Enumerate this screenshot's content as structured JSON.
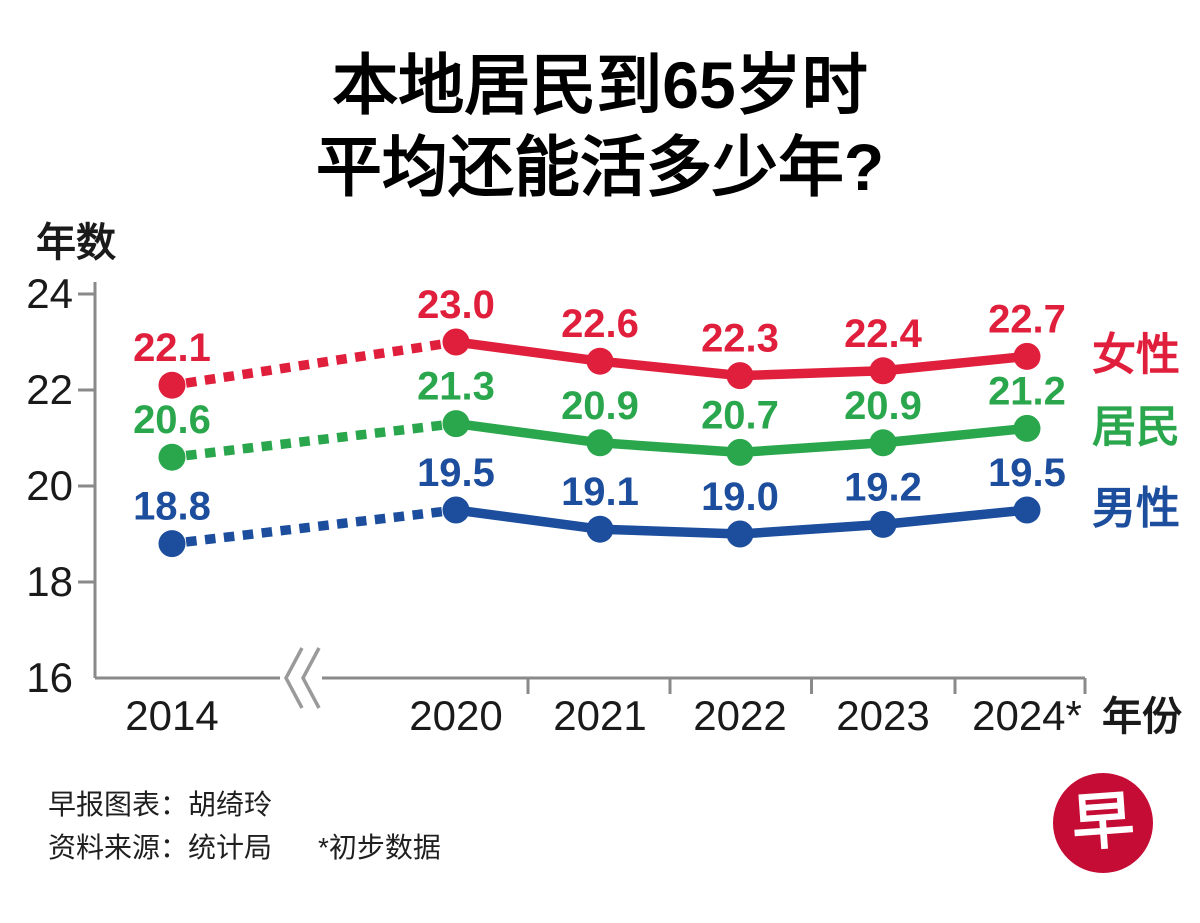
{
  "title": {
    "line1": "本地居民到65岁时",
    "line2": "平均还能活多少年?"
  },
  "chart_data": {
    "type": "line",
    "categories": [
      "2014",
      "2020",
      "2021",
      "2022",
      "2023",
      "2024*"
    ],
    "axis_break_after": "2014",
    "x_axis_label": "年份",
    "y_axis_label": "年数",
    "ylim": [
      16,
      24
    ],
    "yticks": [
      16,
      18,
      20,
      22,
      24
    ],
    "grid": false,
    "legend_position": "right",
    "value_label_decimals": 1,
    "series": [
      {
        "key": "female",
        "name": "女性",
        "color": "#e01f3c",
        "values": [
          22.1,
          23.0,
          22.6,
          22.3,
          22.4,
          22.7
        ]
      },
      {
        "key": "resident",
        "name": "居民",
        "color": "#2aa64c",
        "values": [
          20.6,
          21.3,
          20.9,
          20.7,
          20.9,
          21.2
        ]
      },
      {
        "key": "male",
        "name": "男性",
        "color": "#1c4e9d",
        "values": [
          18.8,
          19.5,
          19.1,
          19.0,
          19.2,
          19.5
        ]
      }
    ],
    "style_note": "dotted line between 2014 and 2020, solid from 2020 onward"
  },
  "colors": {
    "axis": "#8a8a8a",
    "break_symbol": "#9a9a9a",
    "text": "#1a1a1a",
    "logo_background": "#c50c35"
  },
  "footer": {
    "credit": "早报图表：胡绮玲",
    "source": "资料来源：统计局",
    "note": "*初步数据",
    "logo_char": "早"
  }
}
